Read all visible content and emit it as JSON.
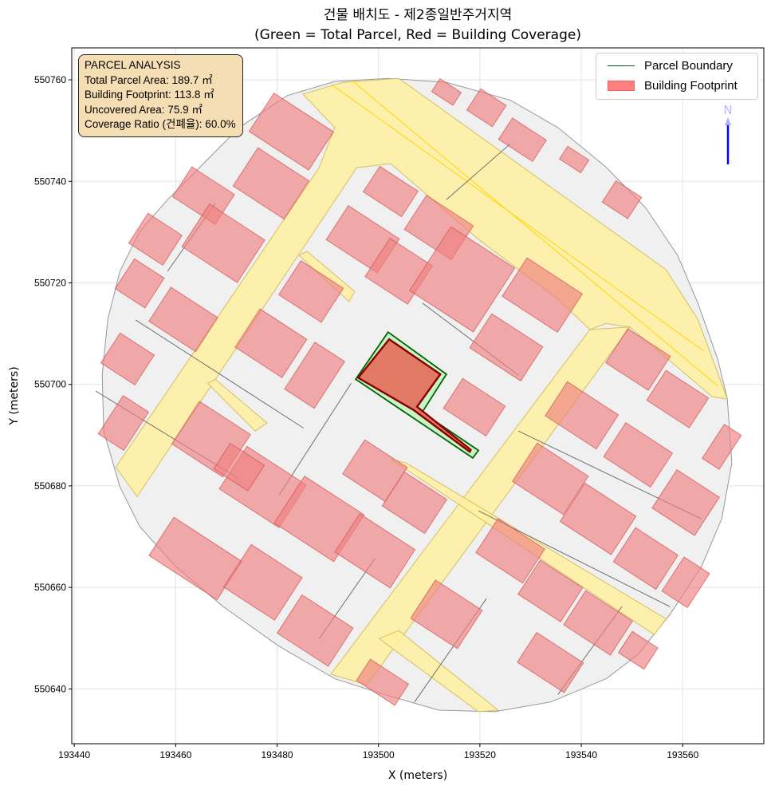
{
  "title": {
    "line1": "건물 배치도 - 제2종일반주거지역",
    "line2": "(Green = Total Parcel, Red = Building Coverage)"
  },
  "info_box": {
    "heading": "PARCEL ANALYSIS",
    "lines": [
      "Total Parcel Area: 189.7 ㎡",
      "Building Footprint: 113.8 ㎡",
      "Uncovered Area: 75.9 ㎡",
      "Coverage Ratio (건폐율): 60.0%"
    ]
  },
  "legend": {
    "placement": "top-right",
    "items": [
      {
        "label": "Parcel Boundary",
        "color": "#006400"
      },
      {
        "label": "Building Footprint",
        "color": "#ff8080"
      }
    ]
  },
  "north_arrow": {
    "label": "N",
    "color": "#0000ff"
  },
  "chart_data": {
    "type": "map",
    "xlabel": "X (meters)",
    "ylabel": "Y (meters)",
    "xlim": [
      193439.5,
      193576
    ],
    "ylim": [
      550629.2,
      550766.3
    ],
    "xticks": [
      193440,
      193460,
      193480,
      193500,
      193520,
      193540,
      193560
    ],
    "yticks": [
      550640,
      550660,
      550680,
      550700,
      550720,
      550740,
      550760
    ],
    "grid": true,
    "colors": {
      "district": "#f0f0f0",
      "road": "#fff0a0",
      "building": "#f08080",
      "parcel_fill": "#c8f5c8",
      "parcel_edge": "#006400",
      "target_building_fill": "#e07a64",
      "target_building_edge": "#8b0000"
    },
    "district_outline": [
      [
        193502,
        550760.3
      ],
      [
        193513.4,
        550759.5
      ],
      [
        193526,
        550756
      ],
      [
        193535.4,
        550750.6
      ],
      [
        193544.9,
        550742.8
      ],
      [
        193552.7,
        550734.8
      ],
      [
        193559,
        550725.4
      ],
      [
        193563,
        550716
      ],
      [
        193566.9,
        550705
      ],
      [
        193568.8,
        550697.2
      ],
      [
        193569.7,
        550684.5
      ],
      [
        193567.7,
        550673.5
      ],
      [
        193563.7,
        550664.1
      ],
      [
        193557.5,
        550654.7
      ],
      [
        193551.2,
        550646.8
      ],
      [
        193544.9,
        550642
      ],
      [
        193533.9,
        550637.4
      ],
      [
        193522.9,
        550635.5
      ],
      [
        193511.9,
        550635.8
      ],
      [
        193500.8,
        550639
      ],
      [
        193491.4,
        550642
      ],
      [
        193480.4,
        550648.4
      ],
      [
        193469.4,
        550656.2
      ],
      [
        193460,
        550664.1
      ],
      [
        193452.9,
        550672
      ],
      [
        193449,
        550679.8
      ],
      [
        193445.8,
        550690.8
      ],
      [
        193445.5,
        550701.8
      ],
      [
        193446.6,
        550712.8
      ],
      [
        193449,
        550722.3
      ],
      [
        193452.9,
        550730.1
      ],
      [
        193458.4,
        550736.4
      ],
      [
        193464.7,
        550742.7
      ],
      [
        193472.5,
        550750.6
      ],
      [
        193482,
        550756.9
      ],
      [
        193491.4,
        550759.7
      ]
    ],
    "roads": [
      [
        [
          193493,
          550759.5
        ],
        [
          193504,
          550760.3
        ],
        [
          193556.7,
          550722.6
        ],
        [
          193563,
          550712.8
        ],
        [
          193568.8,
          550697.1
        ],
        [
          193565.8,
          550697.6
        ],
        [
          193549.6,
          550711.3
        ],
        [
          193544.9,
          550712
        ],
        [
          193541.7,
          550710.8
        ],
        [
          193535.4,
          550716.8
        ],
        [
          193519.7,
          550728.6
        ],
        [
          193502.4,
          550743.5
        ],
        [
          193495.7,
          550742.7
        ],
        [
          193452.4,
          550677.9
        ],
        [
          193448.2,
          550683.7
        ],
        [
          193488.3,
          550742.7
        ],
        [
          193491.4,
          550750.6
        ],
        [
          193485.1,
          550757.2
        ]
      ],
      [
        [
          193541.7,
          550710.8
        ],
        [
          193549.6,
          550711.3
        ],
        [
          193497.7,
          550640.8
        ],
        [
          193490.6,
          550642.9
        ]
      ],
      [
        [
          193502.4,
          550685.3
        ],
        [
          193505.5,
          550684.5
        ],
        [
          193556.7,
          550653.8
        ],
        [
          193554.4,
          550650.7
        ]
      ],
      [
        [
          193500.1,
          550649.9
        ],
        [
          193504,
          550651.5
        ],
        [
          193523.6,
          550635.8
        ],
        [
          193519.7,
          550635.5
        ]
      ],
      [
        [
          193466.3,
          550700.2
        ],
        [
          193467.8,
          550701
        ],
        [
          193478,
          550692.4
        ],
        [
          193475.7,
          550690.8
        ]
      ],
      [
        [
          193484.3,
          550725.4
        ],
        [
          193485.9,
          550726.2
        ],
        [
          193495.3,
          550718.3
        ],
        [
          193494.2,
          550716.3
        ]
      ]
    ],
    "road_centerlines": [
      [
        [
          193490.6,
          550759.2
        ],
        [
          193564.1,
          550706.6
        ]
      ],
      [
        [
          193494.6,
          550760
        ],
        [
          193566.9,
          550699.7
        ]
      ]
    ],
    "parcel_lines": [
      [
        [
          193452.1,
          550712.7
        ],
        [
          193485.2,
          550691.4
        ]
      ],
      [
        [
          193444.2,
          550698.7
        ],
        [
          193472.5,
          550681.4
        ]
      ],
      [
        [
          193467.8,
          550735.6
        ],
        [
          193458.4,
          550722.3
        ]
      ],
      [
        [
          193508.7,
          550716
        ],
        [
          193527.6,
          550701.8
        ]
      ],
      [
        [
          193488.3,
          550649.9
        ],
        [
          193499.3,
          550665.7
        ]
      ],
      [
        [
          193519.7,
          550675.1
        ],
        [
          193557.5,
          550656.2
        ]
      ],
      [
        [
          193527.6,
          550690.8
        ],
        [
          193563.7,
          550673.5
        ]
      ],
      [
        [
          193507.1,
          550637.4
        ],
        [
          193521.3,
          550657.8
        ]
      ],
      [
        [
          193535.4,
          550638.9
        ],
        [
          193548,
          550656.2
        ]
      ],
      [
        [
          193513.4,
          550736.4
        ],
        [
          193526,
          550747.4
        ]
      ],
      [
        [
          193494.6,
          550700.2
        ],
        [
          193480.4,
          550678.2
        ]
      ]
    ],
    "buildings": [
      {
        "cx": 193482.8,
        "cy": 550749.8,
        "w": 14,
        "h": 9
      },
      {
        "cx": 193478.8,
        "cy": 550739.6,
        "w": 12,
        "h": 9
      },
      {
        "cx": 193465.5,
        "cy": 550737.2,
        "w": 10,
        "h": 7
      },
      {
        "cx": 193469.4,
        "cy": 550727.8,
        "w": 13,
        "h": 10
      },
      {
        "cx": 193456,
        "cy": 550728.6,
        "w": 8,
        "h": 7
      },
      {
        "cx": 193452.9,
        "cy": 550719.9,
        "w": 7,
        "h": 7
      },
      {
        "cx": 193461.5,
        "cy": 550712.8,
        "w": 11,
        "h": 8
      },
      {
        "cx": 193450.5,
        "cy": 550705,
        "w": 8,
        "h": 7
      },
      {
        "cx": 193449.7,
        "cy": 550692.4,
        "w": 6,
        "h": 9
      },
      {
        "cx": 193467,
        "cy": 550689.2,
        "w": 12,
        "h": 10
      },
      {
        "cx": 193477.2,
        "cy": 550679.8,
        "w": 14,
        "h": 10
      },
      {
        "cx": 193463.9,
        "cy": 550665.7,
        "w": 16,
        "h": 9
      },
      {
        "cx": 193477.2,
        "cy": 550661,
        "w": 12,
        "h": 10
      },
      {
        "cx": 193488.3,
        "cy": 550673.5,
        "w": 14,
        "h": 11
      },
      {
        "cx": 193499.3,
        "cy": 550667.2,
        "w": 13,
        "h": 9
      },
      {
        "cx": 193487.5,
        "cy": 550651.5,
        "w": 12,
        "h": 9
      },
      {
        "cx": 193478.8,
        "cy": 550708.1,
        "w": 11,
        "h": 9
      },
      {
        "cx": 193487.4,
        "cy": 550701.8,
        "w": 7,
        "h": 11
      },
      {
        "cx": 193486.7,
        "cy": 550718.3,
        "w": 10,
        "h": 8
      },
      {
        "cx": 193496.9,
        "cy": 550728.6,
        "w": 12,
        "h": 8
      },
      {
        "cx": 193504,
        "cy": 550722.3,
        "w": 10,
        "h": 9
      },
      {
        "cx": 193502.4,
        "cy": 550738,
        "w": 9,
        "h": 6
      },
      {
        "cx": 193511.9,
        "cy": 550730.9,
        "w": 11,
        "h": 8
      },
      {
        "cx": 193516.5,
        "cy": 550720.7,
        "w": 15,
        "h": 15
      },
      {
        "cx": 193532.3,
        "cy": 550717.6,
        "w": 13,
        "h": 9
      },
      {
        "cx": 193525.2,
        "cy": 550707.3,
        "w": 12,
        "h": 8
      },
      {
        "cx": 193518.9,
        "cy": 550695.5,
        "w": 10,
        "h": 7
      },
      {
        "cx": 193499.3,
        "cy": 550683,
        "w": 10,
        "h": 8
      },
      {
        "cx": 193507.1,
        "cy": 550676.7,
        "w": 10,
        "h": 8
      },
      {
        "cx": 193513.4,
        "cy": 550654.7,
        "w": 11,
        "h": 9
      },
      {
        "cx": 193526,
        "cy": 550667.2,
        "w": 11,
        "h": 8
      },
      {
        "cx": 193533.9,
        "cy": 550659.3,
        "w": 10,
        "h": 8
      },
      {
        "cx": 193543.3,
        "cy": 550653,
        "w": 11,
        "h": 8
      },
      {
        "cx": 193533.9,
        "cy": 550645.2,
        "w": 11,
        "h": 7
      },
      {
        "cx": 193500.8,
        "cy": 550641.3,
        "w": 9,
        "h": 5
      },
      {
        "cx": 193533.9,
        "cy": 550681.4,
        "w": 12,
        "h": 9
      },
      {
        "cx": 193543.3,
        "cy": 550673.5,
        "w": 12,
        "h": 9
      },
      {
        "cx": 193540.1,
        "cy": 550693.9,
        "w": 12,
        "h": 8
      },
      {
        "cx": 193551.2,
        "cy": 550686.1,
        "w": 11,
        "h": 8
      },
      {
        "cx": 193551.2,
        "cy": 550704.9,
        "w": 10,
        "h": 8
      },
      {
        "cx": 193559,
        "cy": 550697.1,
        "w": 10,
        "h": 7
      },
      {
        "cx": 193560.6,
        "cy": 550676.7,
        "w": 10,
        "h": 9
      },
      {
        "cx": 193552.7,
        "cy": 550665.7,
        "w": 10,
        "h": 8
      },
      {
        "cx": 193560.6,
        "cy": 550661,
        "w": 6,
        "h": 8
      },
      {
        "cx": 193548,
        "cy": 550736.4,
        "w": 6,
        "h": 5
      },
      {
        "cx": 193528.4,
        "cy": 550748.2,
        "w": 8,
        "h": 5
      },
      {
        "cx": 193521.3,
        "cy": 550754.5,
        "w": 6,
        "h": 5
      },
      {
        "cx": 193513.4,
        "cy": 550757.6,
        "w": 5,
        "h": 3
      },
      {
        "cx": 193538.6,
        "cy": 550744.3,
        "w": 5,
        "h": 3
      },
      {
        "cx": 193567.7,
        "cy": 550687.7,
        "w": 4,
        "h": 8
      },
      {
        "cx": 193551.2,
        "cy": 550647.6,
        "w": 6,
        "h": 5
      },
      {
        "cx": 193472.5,
        "cy": 550683.7,
        "w": 8,
        "h": 6
      }
    ],
    "building_rotation_deg": 33,
    "target_parcel": [
      [
        193501.9,
        550710.3
      ],
      [
        193513.4,
        550702.0
      ],
      [
        193508.6,
        550694.5
      ],
      [
        193519.7,
        550687.0
      ],
      [
        193518.6,
        550685.5
      ],
      [
        193495.5,
        550701.0
      ]
    ],
    "target_building": [
      [
        193502.1,
        550708.9
      ],
      [
        193512.2,
        550702.0
      ],
      [
        193507.6,
        550695.6
      ],
      [
        193518.2,
        550687.1
      ],
      [
        193518.0,
        550686.7
      ],
      [
        193507.0,
        550694.9
      ],
      [
        193496.0,
        550701.3
      ]
    ]
  }
}
